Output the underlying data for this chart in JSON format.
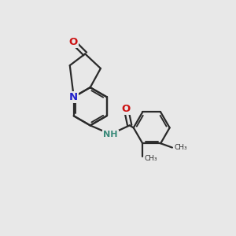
{
  "bg_color": "#e8e8e8",
  "bond_color": "#2a2a2a",
  "bond_width": 1.6,
  "N_color": "#2222cc",
  "O_color": "#cc1111",
  "NH_color": "#2222cc",
  "figsize": [
    3.0,
    3.0
  ],
  "dpi": 100,
  "xlim": [
    0,
    10
  ],
  "ylim": [
    0,
    10
  ]
}
